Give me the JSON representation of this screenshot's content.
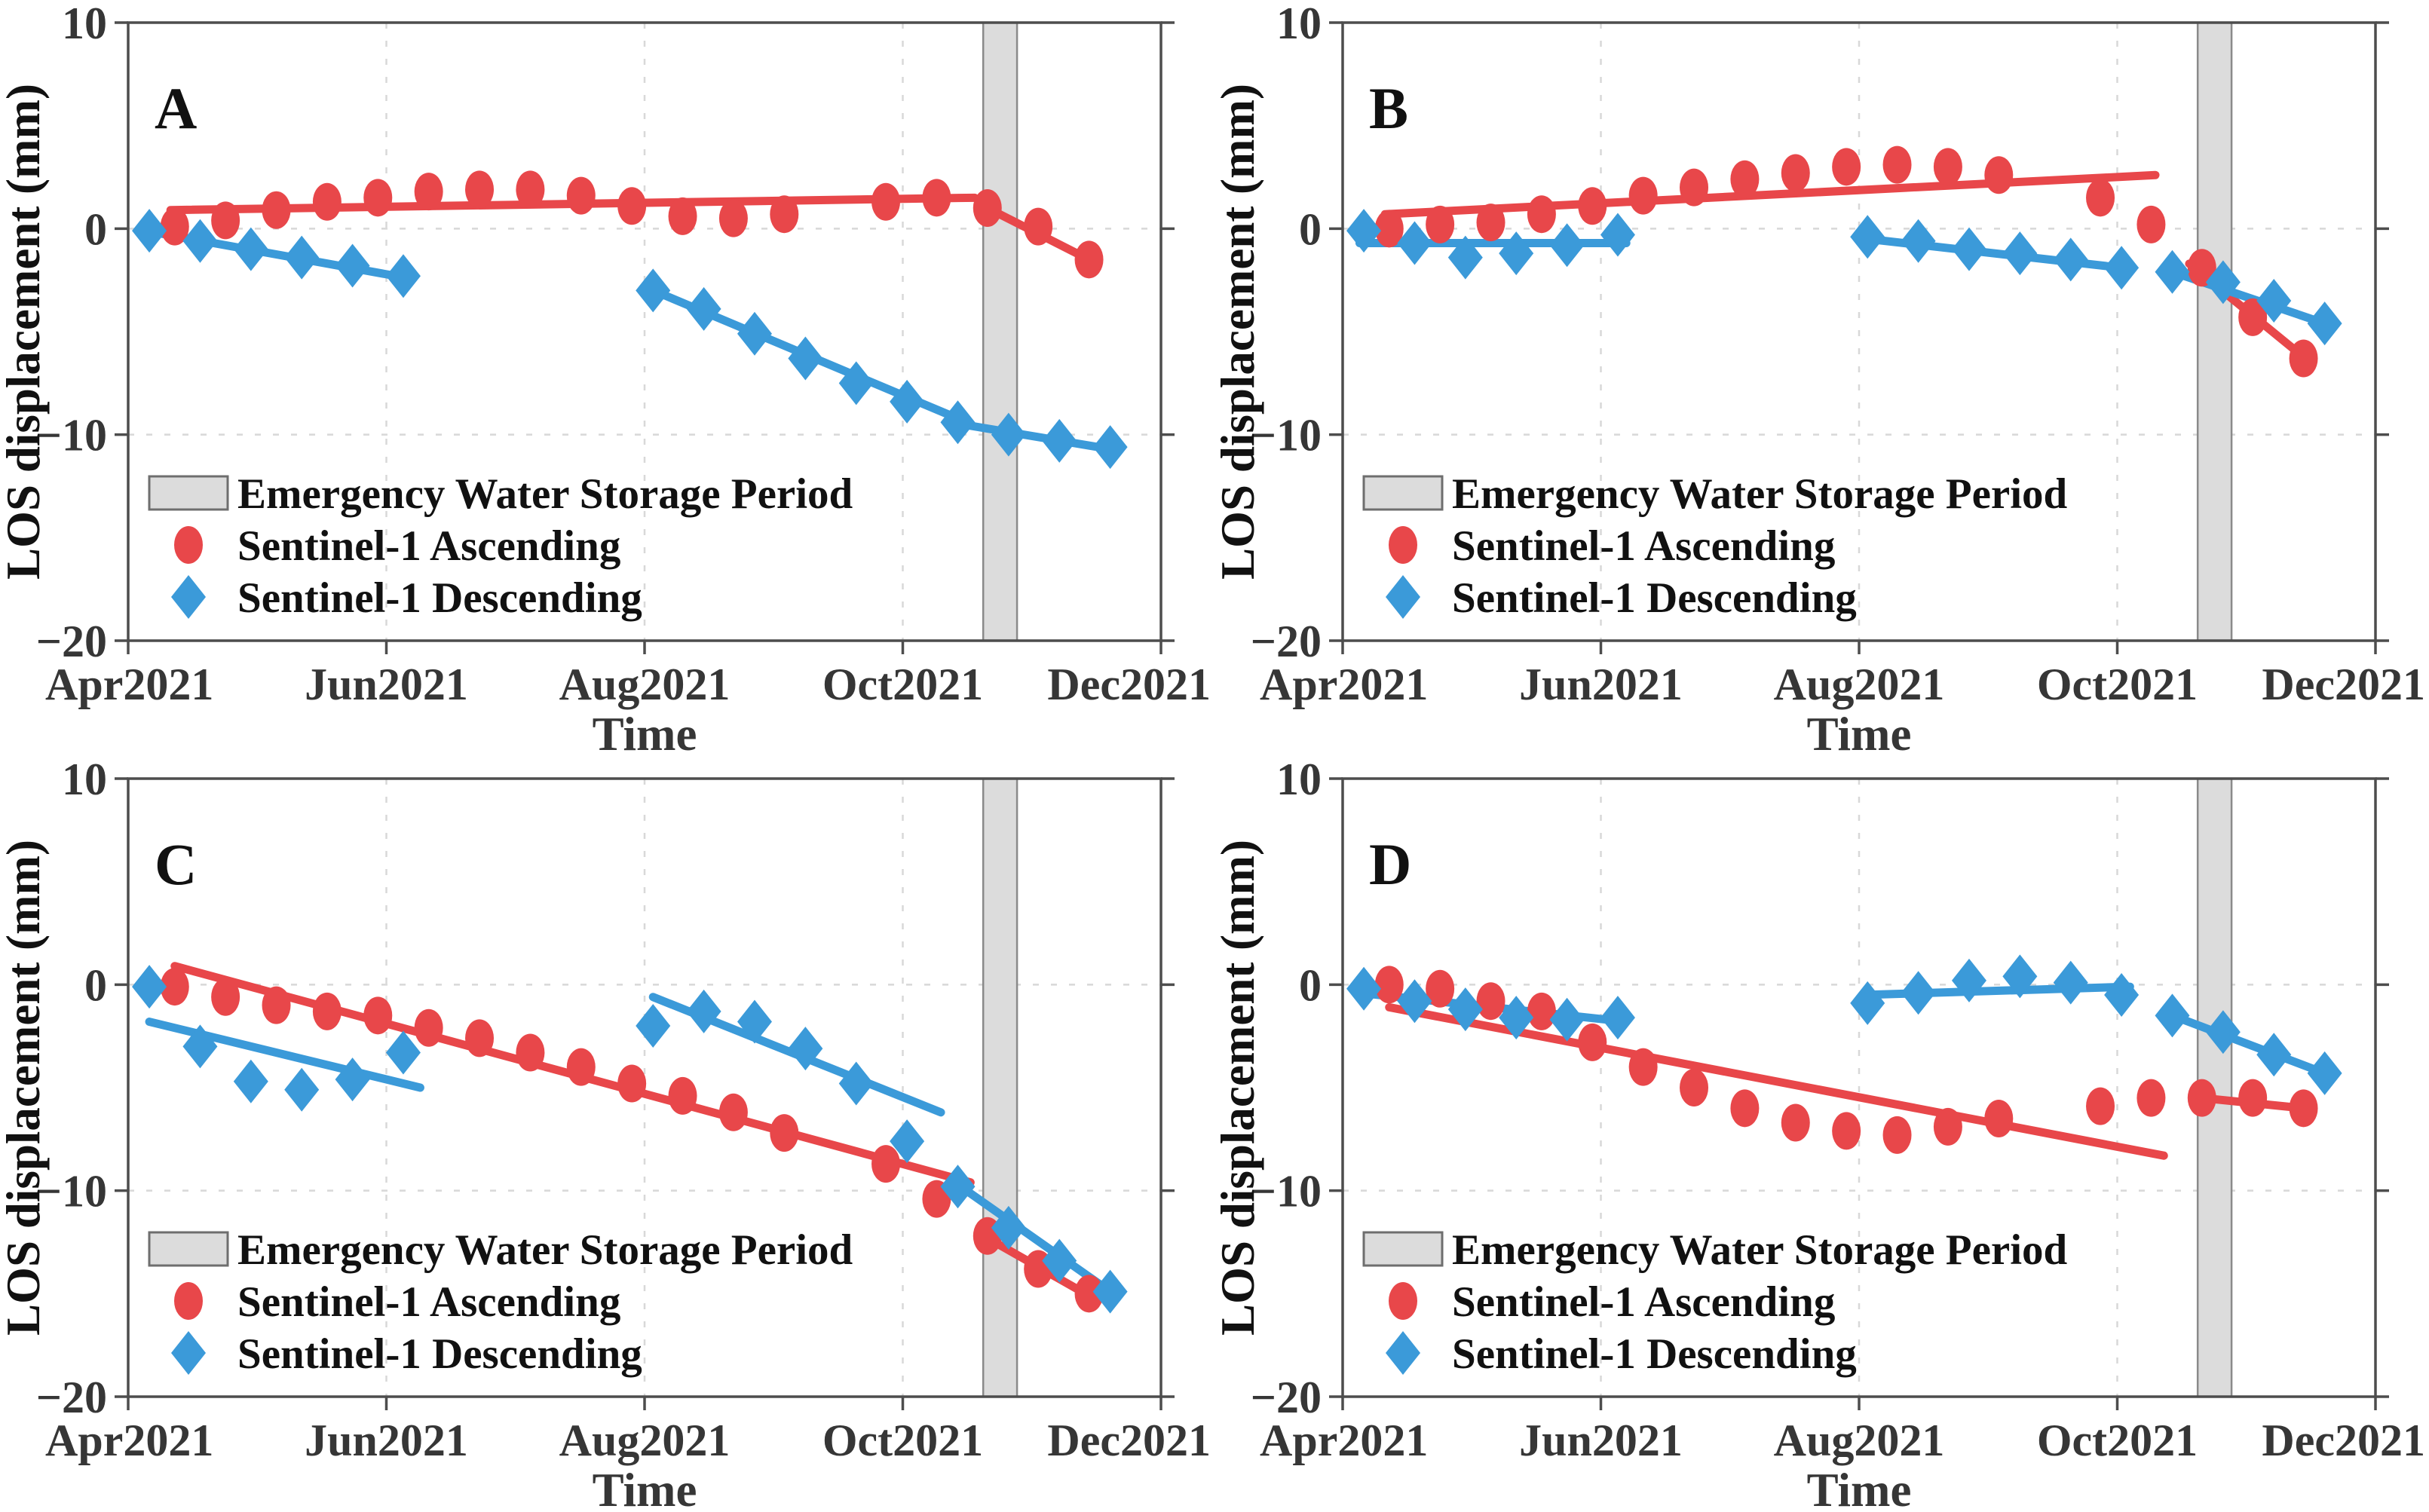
{
  "figure": {
    "ylabel": "LOS displacement (mm)",
    "xlabel": "Time",
    "x_tick_labels": [
      "Apr2021",
      "Jun2021",
      "Aug2021",
      "Oct2021",
      "Dec2021"
    ],
    "x_tick_days": [
      0,
      61,
      122,
      183,
      244
    ],
    "x_grid_days": [
      61,
      122,
      183
    ],
    "y_tick_labels": [
      "10",
      "0",
      "−10",
      "−20"
    ],
    "y_tick_values": [
      10,
      0,
      -10,
      -20
    ],
    "y_grid_values": [
      0,
      -10
    ],
    "y_range": [
      -20,
      10
    ],
    "x_range_days": [
      0,
      244
    ],
    "x_unit": "days since 2021-04-01"
  },
  "legend": {
    "band_label": "Emergency Water Storage Period",
    "ascending_label": "Sentinel-1 Ascending",
    "descending_label": "Sentinel-1 Descending"
  },
  "colors": {
    "ascending": "#E8474A",
    "descending": "#3B9AD9",
    "band_fill": "#DCDCDC",
    "band_edge": "#8A8A8A",
    "grid": "#D8D8D8",
    "axis": "#4D4D4D",
    "tick_text": "#363636",
    "text": "#111111"
  },
  "band": {
    "start_day": 202,
    "end_day": 210
  },
  "chart_data": [
    {
      "panel": "A",
      "type": "scatter",
      "series": [
        {
          "name": "Sentinel-1 Ascending",
          "marker": "circle",
          "x_days": [
            11,
            23,
            35,
            47,
            59,
            71,
            83,
            95,
            107,
            119,
            131,
            143,
            155,
            179,
            191,
            203,
            215,
            227
          ],
          "mm": [
            0.1,
            0.4,
            0.9,
            1.3,
            1.5,
            1.8,
            1.9,
            1.9,
            1.6,
            1.1,
            0.6,
            0.5,
            0.7,
            1.3,
            1.5,
            1.0,
            0.1,
            -1.5
          ],
          "trend": [
            [
              10,
              0.9,
              200,
              1.5
            ],
            [
              203,
              1.0,
              227,
              -1.5
            ]
          ]
        },
        {
          "name": "Sentinel-1 Descending",
          "marker": "diamond",
          "x_days": [
            5,
            17,
            29,
            41,
            53,
            65,
            124,
            136,
            148,
            160,
            172,
            184,
            196,
            208,
            220,
            232
          ],
          "mm": [
            -0.1,
            -0.6,
            -1.0,
            -1.4,
            -1.8,
            -2.3,
            -3.0,
            -3.9,
            -5.1,
            -6.3,
            -7.5,
            -8.4,
            -9.4,
            -10.0,
            -10.3,
            -10.6
          ],
          "trend": [
            [
              4,
              -0.1,
              66,
              -2.4
            ],
            [
              124,
              -3.0,
              197,
              -9.3
            ],
            [
              197,
              -9.5,
              232,
              -10.7
            ]
          ]
        }
      ]
    },
    {
      "panel": "B",
      "type": "scatter",
      "series": [
        {
          "name": "Sentinel-1 Ascending",
          "marker": "circle",
          "x_days": [
            11,
            23,
            35,
            47,
            59,
            71,
            83,
            95,
            107,
            119,
            131,
            143,
            155,
            179,
            191,
            203,
            215,
            227
          ],
          "mm": [
            0.0,
            0.2,
            0.3,
            0.7,
            1.1,
            1.6,
            2.0,
            2.4,
            2.7,
            3.0,
            3.1,
            3.0,
            2.6,
            1.5,
            0.2,
            -1.9,
            -4.3,
            -6.3
          ],
          "trend": [
            [
              10,
              0.7,
              192,
              2.6
            ],
            [
              200,
              -1.7,
              228,
              -6.4
            ]
          ]
        },
        {
          "name": "Sentinel-1 Descending",
          "marker": "diamond",
          "x_days": [
            5,
            17,
            29,
            41,
            53,
            65,
            124,
            136,
            148,
            160,
            172,
            184,
            196,
            208,
            220,
            232
          ],
          "mm": [
            -0.1,
            -0.7,
            -1.4,
            -1.2,
            -0.8,
            -0.3,
            -0.4,
            -0.6,
            -1.0,
            -1.2,
            -1.5,
            -1.9,
            -2.1,
            -2.6,
            -3.5,
            -4.6
          ],
          "trend": [
            [
              4,
              -0.7,
              67,
              -0.7
            ],
            [
              124,
              -0.5,
              184,
              -1.9
            ],
            [
              196,
              -2.1,
              232,
              -4.6
            ]
          ]
        }
      ]
    },
    {
      "panel": "C",
      "type": "scatter",
      "series": [
        {
          "name": "Sentinel-1 Ascending",
          "marker": "circle",
          "x_days": [
            11,
            23,
            35,
            47,
            59,
            71,
            83,
            95,
            107,
            119,
            131,
            143,
            155,
            179,
            191,
            203,
            215,
            227
          ],
          "mm": [
            -0.1,
            -0.6,
            -1.0,
            -1.3,
            -1.5,
            -2.1,
            -2.6,
            -3.3,
            -4.0,
            -4.8,
            -5.4,
            -6.2,
            -7.2,
            -8.7,
            -10.4,
            -12.2,
            -13.8,
            -15.0
          ],
          "trend": [
            [
              11,
              0.9,
              199,
              -9.6
            ],
            [
              203,
              -12.3,
              227,
              -15.1
            ]
          ]
        },
        {
          "name": "Sentinel-1 Descending",
          "marker": "diamond",
          "x_days": [
            5,
            17,
            29,
            41,
            53,
            65,
            124,
            136,
            148,
            160,
            172,
            184,
            196,
            208,
            220,
            232
          ],
          "mm": [
            -0.1,
            -3.0,
            -4.7,
            -5.1,
            -4.6,
            -3.3,
            -2.0,
            -1.3,
            -1.8,
            -3.1,
            -4.8,
            -7.6,
            -9.8,
            -11.8,
            -13.4,
            -14.9
          ],
          "trend": [
            [
              5,
              -1.8,
              69,
              -5.0
            ],
            [
              124,
              -0.6,
              192,
              -6.2
            ],
            [
              196,
              -9.7,
              232,
              -14.9
            ]
          ]
        }
      ]
    },
    {
      "panel": "D",
      "type": "scatter",
      "series": [
        {
          "name": "Sentinel-1 Ascending",
          "marker": "circle",
          "x_days": [
            11,
            23,
            35,
            47,
            59,
            71,
            83,
            95,
            107,
            119,
            131,
            143,
            155,
            179,
            191,
            203,
            215,
            227
          ],
          "mm": [
            0.0,
            -0.2,
            -0.8,
            -1.3,
            -2.8,
            -4.0,
            -5.0,
            -6.0,
            -6.7,
            -7.1,
            -7.3,
            -6.9,
            -6.5,
            -5.9,
            -5.5,
            -5.5,
            -5.5,
            -6.0
          ],
          "trend": [
            [
              11,
              -1.1,
              194,
              -8.3
            ],
            [
              203,
              -5.5,
              227,
              -6.0
            ]
          ]
        },
        {
          "name": "Sentinel-1 Descending",
          "marker": "diamond",
          "x_days": [
            5,
            17,
            29,
            41,
            53,
            65,
            124,
            136,
            148,
            160,
            172,
            184,
            196,
            208,
            220,
            232
          ],
          "mm": [
            -0.2,
            -0.8,
            -1.2,
            -1.6,
            -1.7,
            -1.6,
            -0.9,
            -0.4,
            0.2,
            0.4,
            0.1,
            -0.5,
            -1.5,
            -2.3,
            -3.4,
            -4.3
          ],
          "trend": [
            [
              4,
              -0.4,
              67,
              -1.8
            ],
            [
              123,
              -0.5,
              186,
              -0.1
            ],
            [
              196,
              -1.5,
              232,
              -4.3
            ]
          ]
        }
      ]
    }
  ]
}
